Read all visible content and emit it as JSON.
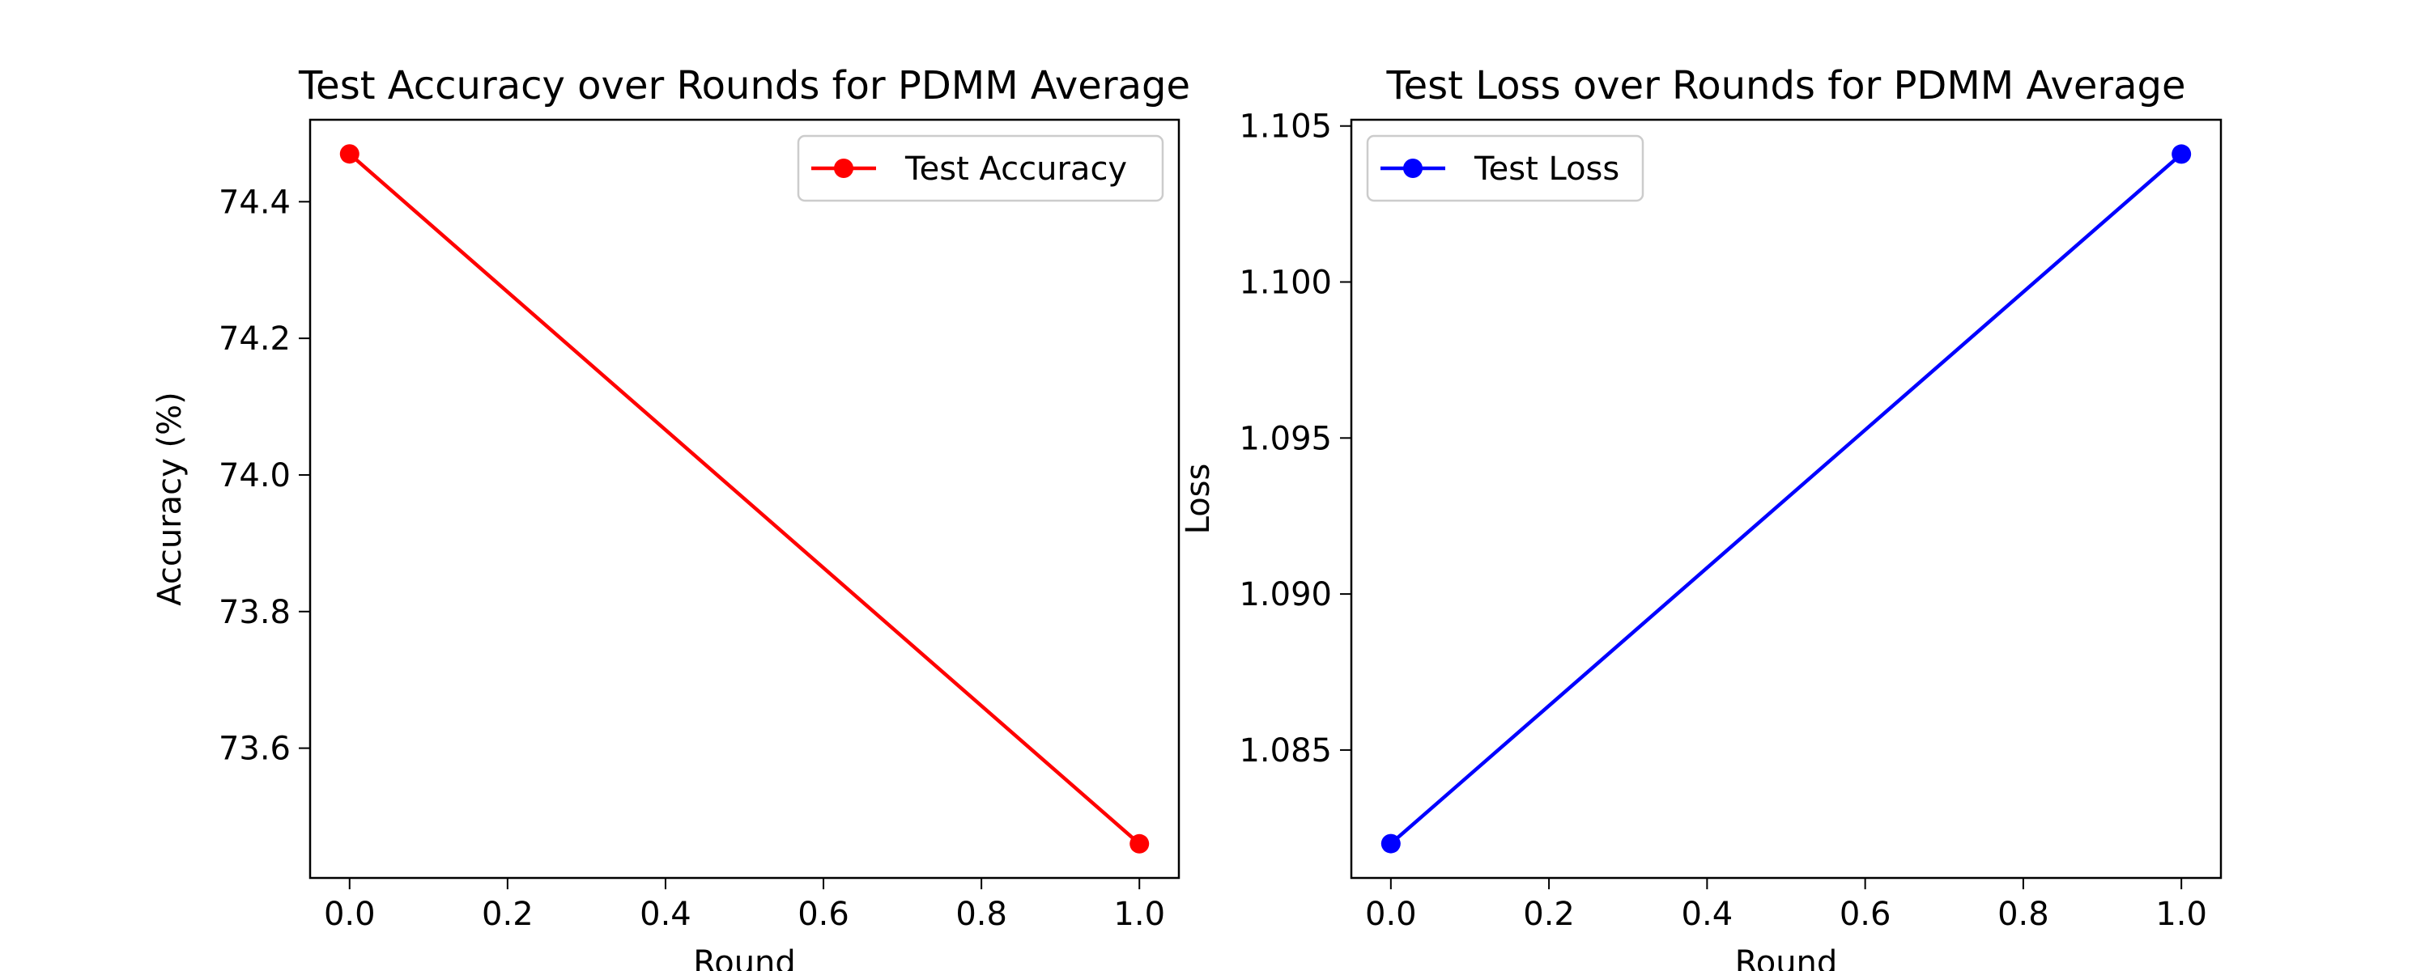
{
  "chart_data": [
    {
      "type": "line",
      "title": "Test Accuracy over Rounds for PDMM Average",
      "xlabel": "Round",
      "ylabel": "Accuracy (%)",
      "xlim": [
        -0.05,
        1.05
      ],
      "ylim": [
        73.41,
        74.52
      ],
      "xticks": [
        0.0,
        0.2,
        0.4,
        0.6,
        0.8,
        1.0
      ],
      "xtick_labels": [
        "0.0",
        "0.2",
        "0.4",
        "0.6",
        "0.8",
        "1.0"
      ],
      "yticks": [
        73.6,
        73.8,
        74.0,
        74.2,
        74.4
      ],
      "ytick_labels": [
        "73.6",
        "73.8",
        "74.0",
        "74.2",
        "74.4"
      ],
      "legend_position": "upper right",
      "grid": false,
      "series": [
        {
          "name": "Test Accuracy",
          "color": "#ff0000",
          "marker": "circle",
          "x": [
            0.0,
            1.0
          ],
          "y": [
            74.47,
            73.46
          ]
        }
      ]
    },
    {
      "type": "line",
      "title": "Test Loss over Rounds for PDMM Average",
      "xlabel": "Round",
      "ylabel": "Loss",
      "xlim": [
        -0.05,
        1.05
      ],
      "ylim": [
        1.0809,
        1.1052
      ],
      "xticks": [
        0.0,
        0.2,
        0.4,
        0.6,
        0.8,
        1.0
      ],
      "xtick_labels": [
        "0.0",
        "0.2",
        "0.4",
        "0.6",
        "0.8",
        "1.0"
      ],
      "yticks": [
        1.085,
        1.09,
        1.095,
        1.1,
        1.105
      ],
      "ytick_labels": [
        "1.085",
        "1.090",
        "1.095",
        "1.100",
        "1.105"
      ],
      "legend_position": "upper left",
      "grid": false,
      "series": [
        {
          "name": "Test Loss",
          "color": "#0000ff",
          "marker": "circle",
          "x": [
            0.0,
            1.0
          ],
          "y": [
            1.082,
            1.1041
          ]
        }
      ]
    }
  ]
}
